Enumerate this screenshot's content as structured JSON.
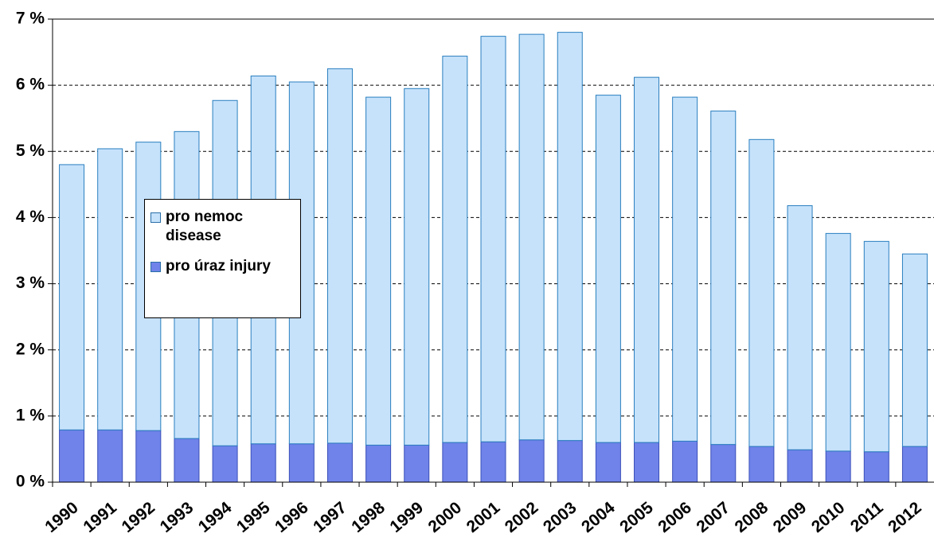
{
  "chart_data": {
    "type": "stacked_bar",
    "categories": [
      "1990",
      "1991",
      "1992",
      "1993",
      "1994",
      "1995",
      "1996",
      "1997",
      "1998",
      "1999",
      "2000",
      "2001",
      "2002",
      "2003",
      "2004",
      "2005",
      "2006",
      "2007",
      "2008",
      "2009",
      "2010",
      "2011",
      "2012"
    ],
    "series": [
      {
        "name": "pro úraz injury",
        "color": "#6f83ea",
        "values": [
          0.79,
          0.79,
          0.78,
          0.66,
          0.55,
          0.58,
          0.58,
          0.59,
          0.56,
          0.56,
          0.6,
          0.61,
          0.64,
          0.63,
          0.6,
          0.6,
          0.62,
          0.57,
          0.54,
          0.49,
          0.47,
          0.46,
          0.54
        ]
      },
      {
        "name": "pro nemoc disease",
        "color": "#c6e2fb",
        "values": [
          4.01,
          4.25,
          4.36,
          4.64,
          5.22,
          5.56,
          5.47,
          5.66,
          5.26,
          5.39,
          5.84,
          6.13,
          6.13,
          6.17,
          5.25,
          5.52,
          5.2,
          5.04,
          4.64,
          3.69,
          3.29,
          3.18,
          2.91
        ]
      }
    ],
    "ylim": [
      0,
      7
    ],
    "yticks": [
      {
        "value": 0,
        "label": "0 %"
      },
      {
        "value": 1,
        "label": "1 %"
      },
      {
        "value": 2,
        "label": "2 %"
      },
      {
        "value": 3,
        "label": "3 %"
      },
      {
        "value": 4,
        "label": "4 %"
      },
      {
        "value": 5,
        "label": "5 %"
      },
      {
        "value": 6,
        "label": "6 %"
      },
      {
        "value": 7,
        "label": "7 %"
      }
    ],
    "grid": true
  }
}
